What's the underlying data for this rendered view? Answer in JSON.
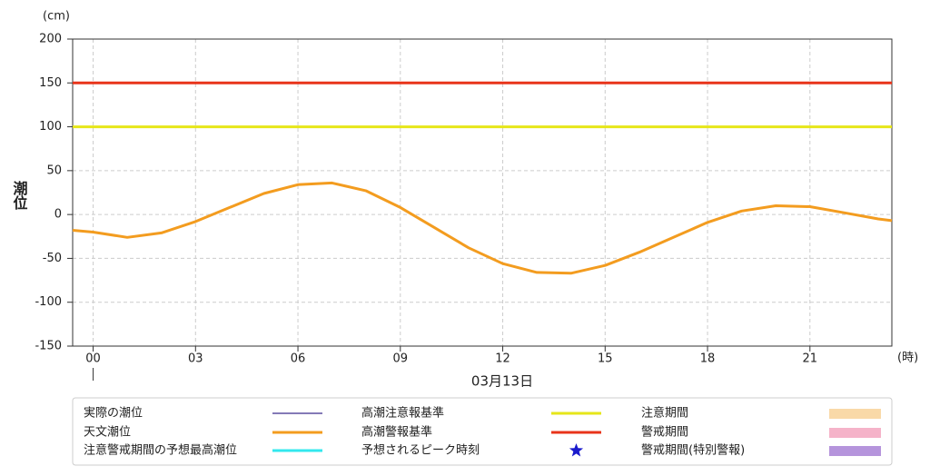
{
  "chart_data": {
    "type": "line",
    "y_unit": "(cm)",
    "y_label": "潮位",
    "x_unit": "(時)",
    "x_label": "03月13日",
    "x": [
      -0.6,
      0,
      1,
      2,
      3,
      4,
      5,
      6,
      7,
      8,
      9,
      10,
      11,
      12,
      13,
      14,
      15,
      16,
      17,
      18,
      19,
      20,
      21,
      22,
      23,
      23.4
    ],
    "xlim": [
      -0.6,
      23.4
    ],
    "xticks": [
      {
        "value": 0,
        "label": "00"
      },
      {
        "value": 3,
        "label": "03"
      },
      {
        "value": 6,
        "label": "06"
      },
      {
        "value": 9,
        "label": "09"
      },
      12,
      15,
      18,
      21
    ],
    "ylim": [
      -150,
      200
    ],
    "yticks": [
      -150,
      -100,
      -50,
      0,
      50,
      100,
      150,
      200
    ],
    "grid": true,
    "series": [
      {
        "name": "実際の潮位",
        "color": "#3a2a8c",
        "marker": "thin-line"
      },
      {
        "name": "天文潮位",
        "color": "#f39c1f",
        "marker": "line",
        "values": [
          -18,
          -20,
          -26,
          -21,
          -8,
          8,
          24,
          34,
          36,
          27,
          8,
          -15,
          -38,
          -56,
          -66,
          -67,
          -58,
          -43,
          -26,
          -9,
          4,
          10,
          9,
          2,
          -5,
          -7
        ]
      },
      {
        "name": "注意警戒期間の予想最高潮位",
        "color": "#33e8ee",
        "marker": "line"
      },
      {
        "name": "高潮注意報基準",
        "color": "#e6e619",
        "marker": "line",
        "value": 100
      },
      {
        "name": "高潮警報基準",
        "color": "#e8341a",
        "marker": "line",
        "value": 150
      },
      {
        "name": "予想されるピーク時刻",
        "color": "#1a1acc",
        "marker": "star"
      },
      {
        "name": "注意期間",
        "color": "#f9d9a8",
        "marker": "rect"
      },
      {
        "name": "警戒期間",
        "color": "#f5b3c9",
        "marker": "rect"
      },
      {
        "name": "警戒期間(特別警報)",
        "color": "#b594dc",
        "marker": "rect"
      }
    ]
  }
}
